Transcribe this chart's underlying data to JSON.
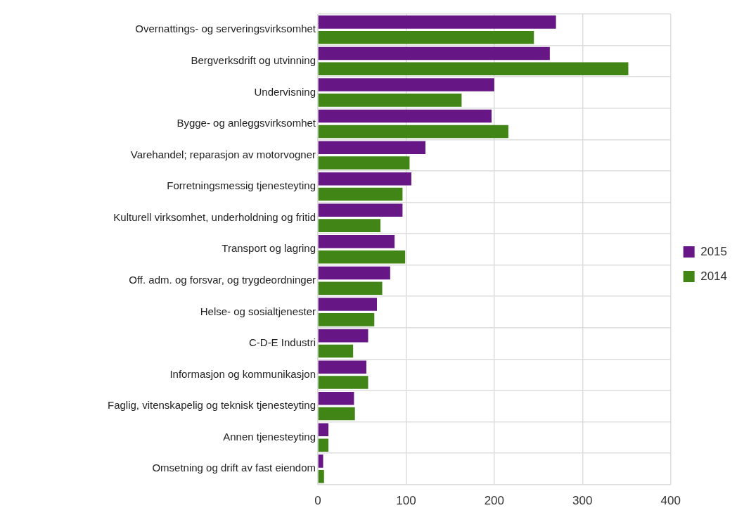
{
  "chart_data": {
    "type": "bar",
    "orientation": "horizontal",
    "categories": [
      "Overnattings- og serveringsvirksomhet",
      "Bergverksdrift og utvinning",
      "Undervisning",
      "Bygge- og anleggsvirksomhet",
      "Varehandel; reparasjon av motorvogner",
      "Forretningsmessig tjenesteyting",
      "Kulturell virksomhet, underholdning og fritid",
      "Transport og lagring",
      "Off. adm. og forsvar, og trygdeordninger",
      "Helse- og sosialtjenester",
      "C-D-E Industri",
      "Informasjon og kommunikasjon",
      "Faglig, vitenskapelig og teknisk tjenesteyting",
      "Annen tjenesteyting",
      "Omsetning og drift av fast eiendom"
    ],
    "series": [
      {
        "name": "2015",
        "color": "#671785",
        "values": [
          270,
          263,
          200,
          197,
          122,
          106,
          96,
          87,
          82,
          67,
          57,
          55,
          41,
          12,
          6
        ]
      },
      {
        "name": "2014",
        "color": "#428517",
        "values": [
          245,
          352,
          163,
          216,
          104,
          96,
          71,
          99,
          73,
          64,
          40,
          57,
          42,
          12,
          7
        ]
      }
    ],
    "xlim": [
      0,
      400
    ],
    "xticks": [
      0,
      100,
      200,
      300,
      400
    ],
    "grid": true,
    "legend": "right"
  }
}
